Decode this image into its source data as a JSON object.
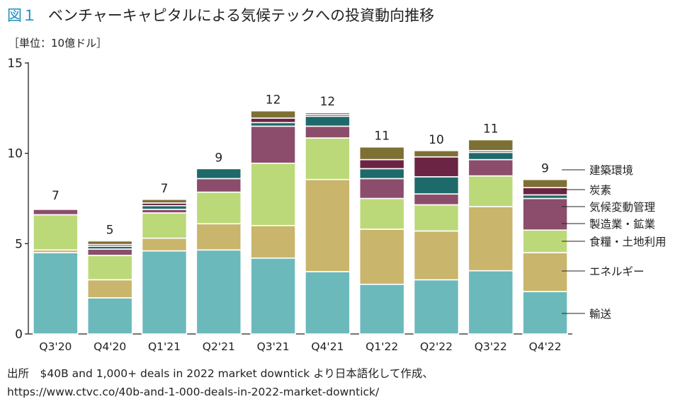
{
  "header": {
    "fig_label": "図１",
    "title": "ベンチャーキャピタルによる気候テックへの投資動向推移"
  },
  "unit_label": "［単位：10億ドル］",
  "source": {
    "line1": "出所　$40B and 1,000+ deals in 2022 market downtick より日本語化して作成、",
    "line2": "https://www.ctvc.co/40b-and-1-000-deals-in-2022-market-downtick/"
  },
  "colors": {
    "transport": "#6bb9bb",
    "energy": "#c9b56b",
    "food": "#bcd97a",
    "manufacturing": "#8b4d6b",
    "climate": "#1e6a6a",
    "carbon": "#6b2444",
    "building": "#7d7034"
  },
  "chart_data": {
    "type": "bar",
    "stacked": true,
    "categories": [
      "Q3'20",
      "Q4'20",
      "Q1'21",
      "Q2'21",
      "Q3'21",
      "Q4'21",
      "Q1'22",
      "Q2'22",
      "Q3'22",
      "Q4'22"
    ],
    "ylim": [
      0,
      15
    ],
    "yticks": [
      0,
      5,
      10,
      15
    ],
    "totals_labels": [
      "7",
      "5",
      "7",
      "9",
      "12",
      "12",
      "11",
      "10",
      "11",
      "9"
    ],
    "series": [
      {
        "name": "輸送",
        "key": "transport",
        "values": [
          4.5,
          2.0,
          4.6,
          4.65,
          4.2,
          3.45,
          2.75,
          3.0,
          3.5,
          2.35
        ]
      },
      {
        "name": "エネルギー",
        "key": "energy",
        "values": [
          0.15,
          1.0,
          0.7,
          1.45,
          1.8,
          5.1,
          3.05,
          2.7,
          3.55,
          2.15
        ]
      },
      {
        "name": "食糧・土地利用",
        "key": "food",
        "values": [
          1.95,
          1.35,
          1.4,
          1.75,
          3.45,
          2.3,
          1.7,
          1.45,
          1.7,
          1.25
        ]
      },
      {
        "name": "製造業・鉱業",
        "key": "manufacturing",
        "values": [
          0.3,
          0.35,
          0.2,
          0.75,
          2.05,
          0.65,
          1.1,
          0.6,
          0.9,
          1.75
        ]
      },
      {
        "name": "気候変動管理",
        "key": "climate",
        "values": [
          0.05,
          0.15,
          0.2,
          0.55,
          0.2,
          0.55,
          0.55,
          0.95,
          0.4,
          0.2
        ]
      },
      {
        "name": "炭素",
        "key": "carbon",
        "values": [
          0.05,
          0.1,
          0.15,
          0.0,
          0.25,
          0.1,
          0.5,
          1.1,
          0.1,
          0.4
        ]
      },
      {
        "name": "建築環境",
        "key": "building",
        "values": [
          0.05,
          0.2,
          0.2,
          0.0,
          0.4,
          0.1,
          0.7,
          0.35,
          0.6,
          0.45
        ]
      }
    ],
    "legend_order": [
      "建築環境",
      "炭素",
      "気候変動管理",
      "製造業・鉱業",
      "食糧・土地利用",
      "エネルギー",
      "輸送"
    ]
  }
}
